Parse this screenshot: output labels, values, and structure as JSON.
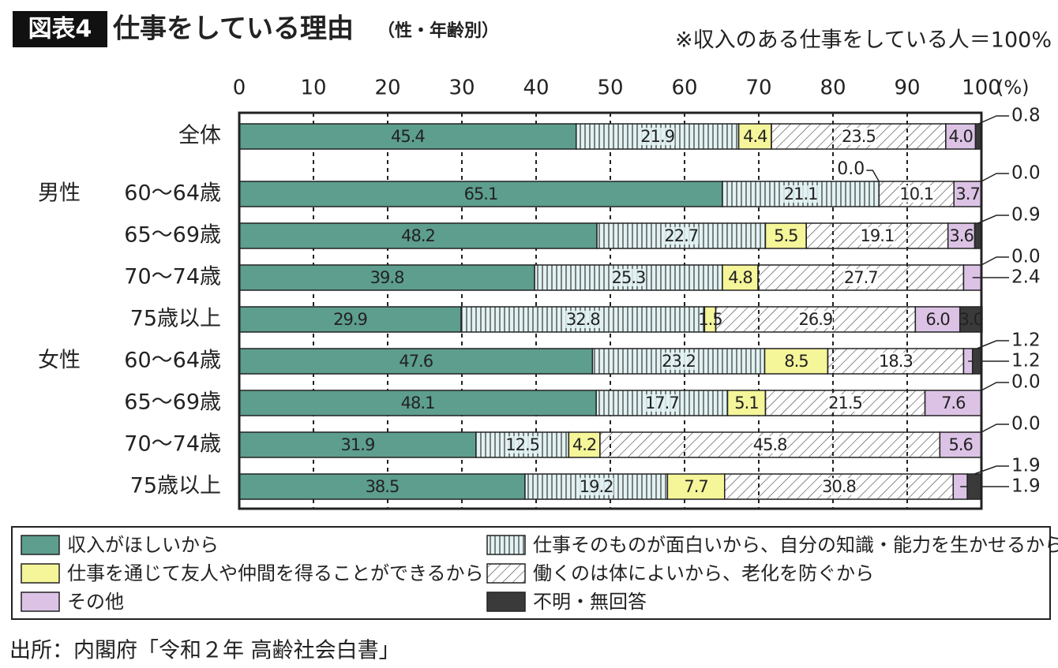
{
  "chart_data": {
    "type": "stacked-barh",
    "title_badge": "図表4",
    "title": "仕事をしている理由",
    "subtitle": "（性・年齢別）",
    "note": "※収入のある仕事をしている人＝100%",
    "source": "出所：内閣府「令和２年 高齢社会白書」",
    "x_unit": "(%)",
    "categories": [
      "全体",
      "60〜64歳",
      "65〜69歳",
      "70〜74歳",
      "75歳以上",
      "60〜64歳",
      "65〜69歳",
      "70〜74歳",
      "75歳以上"
    ],
    "groups": [
      null,
      "男性",
      null,
      null,
      null,
      "女性",
      null,
      null,
      null
    ],
    "xlim": [
      0,
      100
    ],
    "xticks": [
      0,
      10,
      20,
      30,
      40,
      50,
      60,
      70,
      80,
      90,
      100
    ],
    "grid": true,
    "series": [
      {
        "name": "収入がほしいから",
        "color": "#5d9e8e",
        "pattern": "solid",
        "values": [
          45.4,
          65.1,
          48.2,
          39.8,
          29.9,
          47.6,
          48.1,
          31.9,
          38.5
        ],
        "value_labels": [
          "45.4",
          "65.1",
          "48.2",
          "39.8",
          "29.9",
          "47.6",
          "48.1",
          "31.9",
          "38.5"
        ]
      },
      {
        "name": "仕事そのものが面白いから、自分の知識・能力を生かせるから",
        "color": "#e2f2f3",
        "pattern": "vertical",
        "values": [
          21.9,
          21.1,
          22.7,
          25.3,
          32.8,
          23.2,
          17.7,
          12.5,
          19.2
        ],
        "value_labels": [
          "21.9",
          "21.1",
          "22.7",
          "25.3",
          "32.8",
          "23.2",
          "17.7",
          "12.5",
          "19.2"
        ]
      },
      {
        "name": "仕事を通じて友人や仲間を得ることができるから",
        "color": "#f5f59a",
        "pattern": "solid",
        "values": [
          4.4,
          0.0,
          5.5,
          4.8,
          1.5,
          8.5,
          5.1,
          4.2,
          7.7
        ],
        "value_labels": [
          "4.4",
          "0.0",
          "5.5",
          "4.8",
          "1.5",
          "8.5",
          "5.1",
          "4.2",
          "7.7"
        ]
      },
      {
        "name": "働くのは体によいから、老化を防ぐから",
        "color": "#ffffff",
        "pattern": "diagonal",
        "values": [
          23.5,
          10.1,
          19.1,
          27.7,
          26.9,
          18.3,
          21.5,
          45.8,
          30.8
        ],
        "value_labels": [
          "23.5",
          "10.1",
          "19.1",
          "27.7",
          "26.9",
          "18.3",
          "21.5",
          "45.8",
          "30.8"
        ]
      },
      {
        "name": "その他",
        "color": "#dcc3e6",
        "pattern": "solid",
        "values": [
          4.0,
          3.7,
          3.6,
          2.4,
          6.0,
          1.2,
          7.6,
          5.6,
          1.9
        ],
        "value_labels": [
          "4.0",
          "3.7",
          "3.6",
          "2.4",
          "6.0",
          "1.2",
          "7.6",
          "5.6",
          "1.9"
        ]
      },
      {
        "name": "不明・無回答",
        "color": "#3a3a3a",
        "pattern": "solid",
        "values": [
          0.8,
          0.0,
          0.9,
          0.0,
          3.0,
          1.2,
          0.0,
          0.0,
          1.9
        ],
        "value_labels": [
          "0.8",
          "0.0",
          "0.9",
          "0.0",
          "3.0",
          "1.2",
          "0.0",
          "0.0",
          "1.9"
        ]
      }
    ]
  }
}
